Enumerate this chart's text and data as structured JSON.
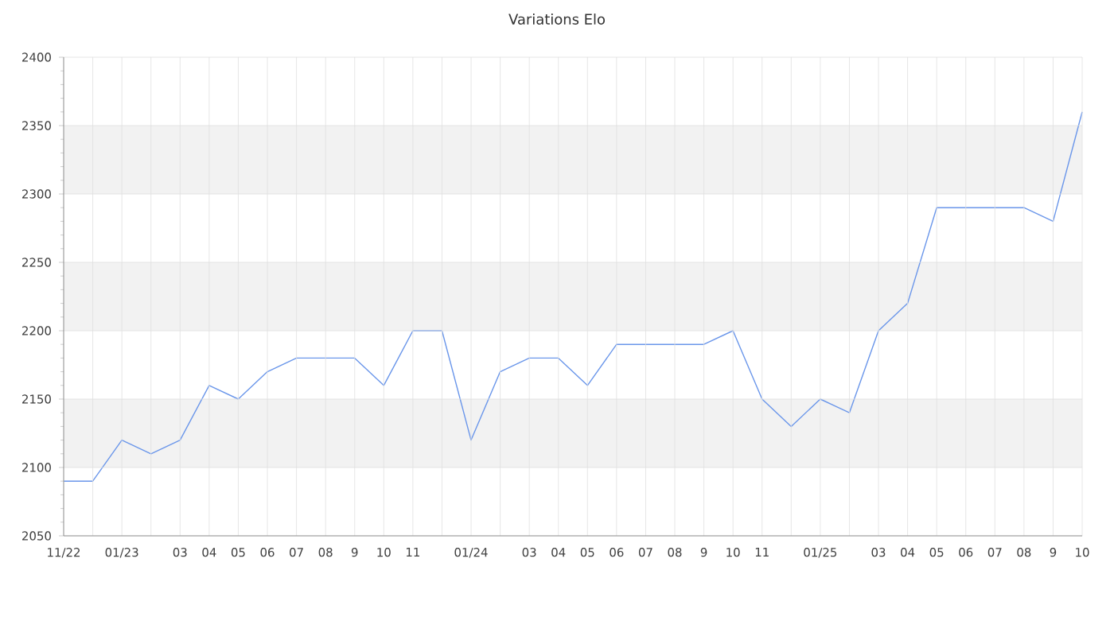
{
  "chart_data": {
    "type": "line",
    "title": "Variations Elo",
    "categories": [
      "11/22",
      null,
      "01/23",
      null,
      "03",
      "04",
      "05",
      "06",
      "07",
      "08",
      "9",
      "10",
      "11",
      null,
      "01/24",
      null,
      "03",
      "04",
      "05",
      "06",
      "07",
      "08",
      "9",
      "10",
      "11",
      null,
      "01/25",
      null,
      "03",
      "04",
      "05",
      "06",
      "07",
      "08",
      "9",
      "10"
    ],
    "series": [
      {
        "color": "#6a96ea",
        "values": [
          2090,
          2090,
          2120,
          2110,
          2120,
          2160,
          2150,
          2170,
          2180,
          2180,
          2180,
          2160,
          2200,
          2200,
          2120,
          2170,
          2180,
          2180,
          2160,
          2190,
          2190,
          2190,
          2190,
          2200,
          2150,
          2130,
          2150,
          2140,
          2200,
          2220,
          2290,
          2290,
          2290,
          2290,
          2280,
          2360
        ]
      }
    ],
    "ylim": [
      2050,
      2400
    ],
    "yticks": [
      2050,
      2100,
      2150,
      2200,
      2250,
      2300,
      2350,
      2400
    ],
    "bands": [
      {
        "axis": "y",
        "from": 2100,
        "to": 2150,
        "color": "#f2f2f2"
      },
      {
        "axis": "y",
        "from": 2200,
        "to": 2250,
        "color": "#f2f2f2"
      },
      {
        "axis": "y",
        "from": 2300,
        "to": 2350,
        "color": "#f2f2f2"
      }
    ],
    "grid": true,
    "marker": "none",
    "line_style": "solid"
  }
}
